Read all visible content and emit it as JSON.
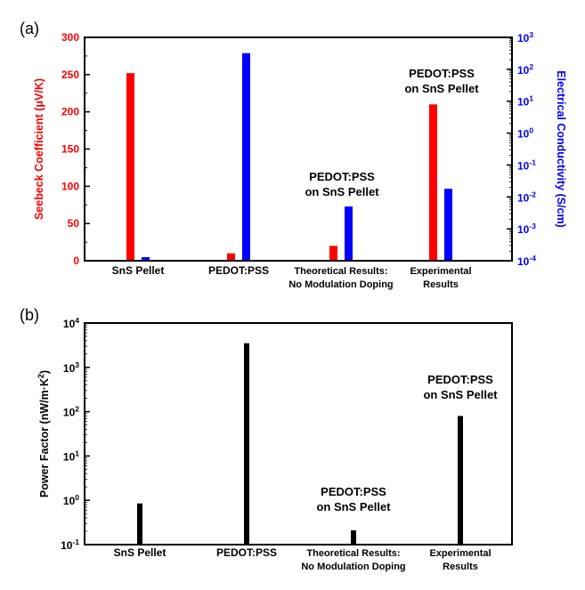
{
  "chart_data": [
    {
      "type": "bar",
      "panel_label": "(a)",
      "categories": [
        {
          "lines": [
            "SnS Pellet"
          ]
        },
        {
          "lines": [
            "PEDOT:PSS"
          ]
        },
        {
          "lines": [
            "Theoretical Results:",
            "No Modulation Doping"
          ]
        },
        {
          "lines": [
            "Experimental",
            "Results"
          ]
        }
      ],
      "series": [
        {
          "values": [
            252,
            10,
            20,
            210
          ],
          "axis": "left",
          "color": "#ff0000"
        },
        {
          "values": [
            0.00013,
            320,
            0.005,
            0.018
          ],
          "axis": "right",
          "color": "#0000ff"
        }
      ],
      "ylabel": "Seebeck Coefficient (μV/K)",
      "ylabel_color": "#ff0000",
      "ylim": [
        0,
        300
      ],
      "yticks": [
        0,
        50,
        100,
        150,
        200,
        250,
        300
      ],
      "y2label": "Electrical Conductivity (S/cm)",
      "y2label_color": "#0000ff",
      "y2scale": "log",
      "y2lim": [
        0.0001,
        1000
      ],
      "y2tick_exponents": [
        -4,
        -3,
        -2,
        -1,
        0,
        1,
        2,
        3
      ],
      "annotations": [
        {
          "category": 2,
          "lines": [
            "PEDOT:PSS",
            "on SnS Pellet"
          ]
        },
        {
          "category": 3,
          "lines": [
            "PEDOT:PSS",
            "on SnS Pellet"
          ]
        }
      ]
    },
    {
      "type": "bar",
      "panel_label": "(b)",
      "categories": [
        {
          "lines": [
            "SnS Pellet"
          ]
        },
        {
          "lines": [
            "PEDOT:PSS"
          ]
        },
        {
          "lines": [
            "Theoretical Results:",
            "No Modulation Doping"
          ]
        },
        {
          "lines": [
            "Experimental",
            "Results"
          ]
        }
      ],
      "series": [
        {
          "values": [
            0.85,
            3500,
            0.21,
            80
          ],
          "color": "#000000"
        }
      ],
      "ylabel": "Power Factor (nW/m·K",
      "ylabel_sup": "2",
      "ylabel_tail": ")",
      "yscale": "log",
      "ylim": [
        0.1,
        10000
      ],
      "ytick_exponents": [
        -1,
        0,
        1,
        2,
        3,
        4
      ],
      "annotations": [
        {
          "category": 2,
          "lines": [
            "PEDOT:PSS",
            "on SnS Pellet"
          ]
        },
        {
          "category": 3,
          "lines": [
            "PEDOT:PSS",
            "on SnS Pellet"
          ]
        }
      ]
    }
  ]
}
